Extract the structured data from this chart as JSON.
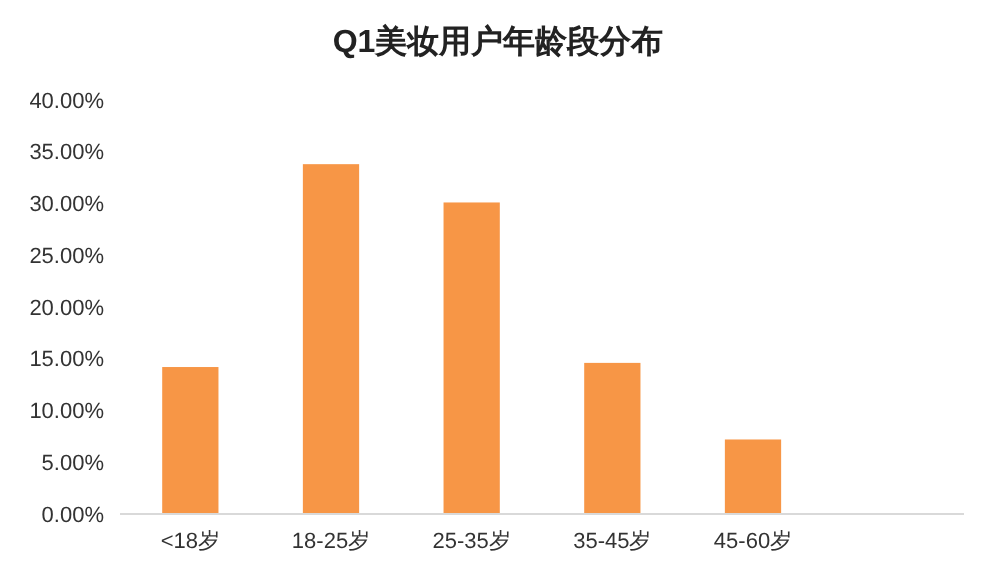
{
  "chart_data": {
    "type": "bar",
    "title": "Q1美妆用户年龄段分布",
    "categories": [
      "<18岁",
      "18-25岁",
      "25-35岁",
      "35-45岁",
      "45-60岁",
      null
    ],
    "values": [
      14.2,
      33.8,
      30.1,
      14.6,
      7.2,
      null
    ],
    "color": "#f79646",
    "ylim": [
      0,
      40
    ],
    "yticks": [
      {
        "value": 0,
        "label": "0.00%"
      },
      {
        "value": 5,
        "label": "5.00%"
      },
      {
        "value": 10,
        "label": "10.00%"
      },
      {
        "value": 15,
        "label": "15.00%"
      },
      {
        "value": 20,
        "label": "20.00%"
      },
      {
        "value": 25,
        "label": "25.00%"
      },
      {
        "value": 30,
        "label": "30.00%"
      },
      {
        "value": 35,
        "label": "35.00%"
      },
      {
        "value": 40,
        "label": "40.00%"
      }
    ],
    "grid": false
  }
}
